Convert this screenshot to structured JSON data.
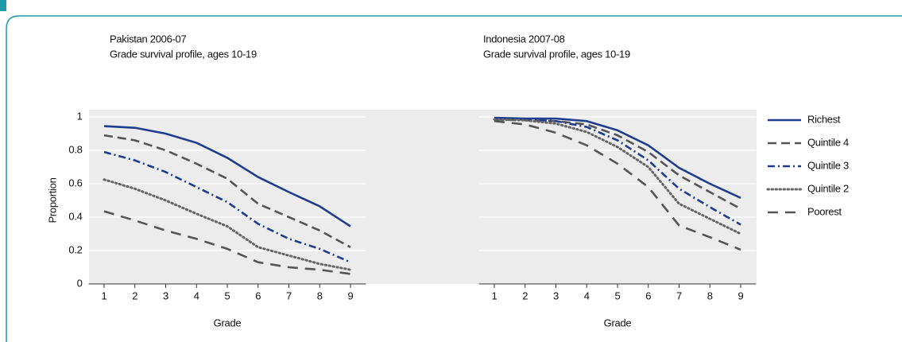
{
  "chart_data": [
    {
      "type": "line",
      "title": "Pakistan 2006-07",
      "subtitle": "Grade survival profile, ages 10-19",
      "x_label": "Grade",
      "y_label": "Proportion",
      "x": [
        1,
        2,
        3,
        4,
        5,
        6,
        7,
        8,
        9
      ],
      "xlim": [
        0.5,
        9.5
      ],
      "xticks": [
        1,
        2,
        3,
        4,
        5,
        6,
        7,
        8,
        9
      ],
      "ylim": [
        0,
        1
      ],
      "yticks": [
        0,
        0.2,
        0.4,
        0.6,
        0.8,
        1
      ],
      "grid": true,
      "series": [
        {
          "name": "Richest",
          "color": "#1f3d8f",
          "dash": "solid",
          "values": [
            0.945,
            0.935,
            0.9,
            0.845,
            0.755,
            0.64,
            0.55,
            0.465,
            0.345
          ]
        },
        {
          "name": "Quintile 4",
          "color": "#555555",
          "dash": "dashed",
          "values": [
            0.89,
            0.86,
            0.8,
            0.72,
            0.63,
            0.48,
            0.4,
            0.32,
            0.22
          ]
        },
        {
          "name": "Quintile 3",
          "color": "#1f3d8f",
          "dash": "dashdot",
          "values": [
            0.79,
            0.74,
            0.67,
            0.58,
            0.49,
            0.36,
            0.27,
            0.21,
            0.13
          ]
        },
        {
          "name": "Quintile 2",
          "color": "#666666",
          "dash": "dotted",
          "values": [
            0.625,
            0.57,
            0.5,
            0.42,
            0.345,
            0.22,
            0.17,
            0.12,
            0.085
          ]
        },
        {
          "name": "Poorest",
          "color": "#555555",
          "dash": "longdash",
          "values": [
            0.435,
            0.38,
            0.32,
            0.27,
            0.21,
            0.13,
            0.1,
            0.085,
            0.06
          ]
        }
      ]
    },
    {
      "type": "line",
      "title": "Indonesia 2007-08",
      "subtitle": "Grade survival profile, ages 10-19",
      "x_label": "Grade",
      "x": [
        1,
        2,
        3,
        4,
        5,
        6,
        7,
        8,
        9
      ],
      "xlim": [
        0.5,
        9.5
      ],
      "xticks": [
        1,
        2,
        3,
        4,
        5,
        6,
        7,
        8,
        9
      ],
      "ylim": [
        0,
        1
      ],
      "yticks": [
        0,
        0.2,
        0.4,
        0.6,
        0.8,
        1
      ],
      "grid": true,
      "series": [
        {
          "name": "Richest",
          "color": "#1f3d8f",
          "dash": "solid",
          "values": [
            0.995,
            0.99,
            0.99,
            0.975,
            0.92,
            0.83,
            0.695,
            0.6,
            0.515
          ]
        },
        {
          "name": "Quintile 4",
          "color": "#555555",
          "dash": "dashed",
          "values": [
            0.985,
            0.98,
            0.975,
            0.955,
            0.89,
            0.79,
            0.65,
            0.55,
            0.45
          ]
        },
        {
          "name": "Quintile 3",
          "color": "#1f3d8f",
          "dash": "dashdot",
          "values": [
            0.99,
            0.985,
            0.975,
            0.94,
            0.86,
            0.74,
            0.57,
            0.46,
            0.355
          ]
        },
        {
          "name": "Quintile 2",
          "color": "#666666",
          "dash": "dotted",
          "values": [
            0.985,
            0.98,
            0.96,
            0.91,
            0.82,
            0.7,
            0.48,
            0.39,
            0.3
          ]
        },
        {
          "name": "Poorest",
          "color": "#555555",
          "dash": "longdash",
          "values": [
            0.975,
            0.955,
            0.905,
            0.83,
            0.72,
            0.58,
            0.35,
            0.28,
            0.205
          ]
        }
      ]
    }
  ]
}
